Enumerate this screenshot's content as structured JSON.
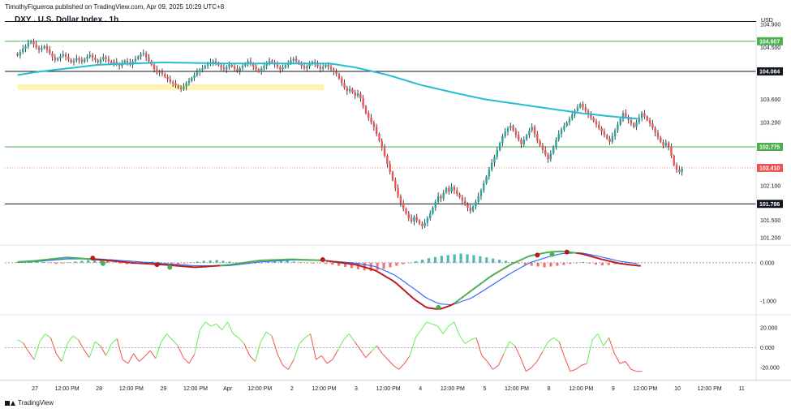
{
  "header": {
    "publisher_line": "TimothyFigueroa published on TradingView.com, Apr 09, 2025 10:29 UTC+8",
    "title": "DXY . U.S. Dollar Index . 1h",
    "currency": "USD"
  },
  "footer": {
    "brand": "TradingView"
  },
  "colors": {
    "up": "#26a69a",
    "down": "#ef5350",
    "wick": "#131722",
    "ma": "#26bdd1",
    "h_green": "#4caf50",
    "h_black": "#131722",
    "current": "#ef5350",
    "zone": "#fff2b3",
    "macd_green": "#4caf50",
    "macd_red": "#b71c1c",
    "signal_blue": "#2962ff",
    "osc_up": "#66ee55",
    "osc_down": "#ef5350"
  },
  "chart_data": [
    {
      "type": "candlestick",
      "title": "DXY . U.S. Dollar Index . 1h",
      "ylim": [
        101.1,
        104.9
      ],
      "y_ticks": [
        "104.900",
        "104.500",
        "104.084",
        "103.600",
        "103.200",
        "102.100",
        "101.500",
        "101.200"
      ],
      "x_ticks": [
        "27",
        "12:00 PM",
        "28",
        "12:00 PM",
        "29",
        "12:00 PM",
        "Apr",
        "12:00 PM",
        "2",
        "12:00 PM",
        "3",
        "12:00 PM",
        "4",
        "12:00 PM",
        "5",
        "12:00 PM",
        "8",
        "12:00 PM",
        "9",
        "12:00 PM",
        "10",
        "12:00 PM",
        "11"
      ],
      "x_tick_pos": [
        0,
        0.5,
        1,
        1.5,
        2,
        2.5,
        3,
        3.5,
        4,
        4.5,
        5,
        5.5,
        6,
        6.5,
        7,
        7.5,
        8,
        8.5,
        9,
        9.5,
        10,
        10.5,
        11
      ],
      "x_start": -0.27,
      "x_end": 11,
      "bar_period": 0.0417,
      "closes": [
        104.36,
        104.42,
        104.48,
        104.52,
        104.58,
        104.61,
        104.55,
        104.5,
        104.46,
        104.49,
        104.52,
        104.46,
        104.4,
        104.33,
        104.28,
        104.31,
        104.35,
        104.38,
        104.34,
        104.29,
        104.24,
        104.27,
        104.31,
        104.28,
        104.25,
        104.3,
        104.34,
        104.37,
        104.32,
        104.28,
        104.24,
        104.29,
        104.33,
        104.3,
        104.26,
        104.22,
        104.25,
        104.21,
        104.18,
        104.23,
        104.27,
        104.24,
        104.2,
        104.26,
        104.3,
        104.34,
        104.38,
        104.4,
        104.33,
        104.26,
        104.2,
        104.12,
        104.06,
        104.08,
        104.04,
        103.99,
        103.95,
        103.9,
        103.88,
        103.84,
        103.8,
        103.78,
        103.82,
        103.88,
        103.92,
        103.97,
        104.02,
        104.07,
        104.11,
        104.14,
        104.18,
        104.21,
        104.24,
        104.26,
        104.23,
        104.19,
        104.15,
        104.12,
        104.16,
        104.2,
        104.17,
        104.13,
        104.09,
        104.14,
        104.18,
        104.22,
        104.26,
        104.21,
        104.17,
        104.12,
        104.08,
        104.13,
        104.18,
        104.23,
        104.27,
        104.24,
        104.2,
        104.16,
        104.12,
        104.15,
        104.19,
        104.23,
        104.27,
        104.3,
        104.26,
        104.22,
        104.18,
        104.14,
        104.17,
        104.21,
        104.25,
        104.21,
        104.17,
        104.13,
        104.16,
        104.2,
        104.16,
        104.12,
        104.08,
        104.04,
        103.96,
        103.88,
        103.8,
        103.74,
        103.78,
        103.72,
        103.66,
        103.7,
        103.62,
        103.48,
        103.36,
        103.28,
        103.2,
        103.12,
        103.0,
        102.88,
        102.76,
        102.62,
        102.48,
        102.34,
        102.2,
        102.06,
        101.92,
        101.8,
        101.7,
        101.62,
        101.54,
        101.48,
        101.56,
        101.5,
        101.44,
        101.4,
        101.46,
        101.54,
        101.62,
        101.72,
        101.82,
        101.92,
        101.88,
        101.98,
        102.06,
        102.0,
        102.08,
        102.02,
        101.96,
        101.9,
        101.84,
        101.78,
        101.72,
        101.66,
        101.74,
        101.82,
        101.92,
        102.02,
        102.14,
        102.26,
        102.38,
        102.5,
        102.6,
        102.72,
        102.84,
        102.96,
        103.04,
        103.1,
        103.14,
        103.06,
        102.98,
        102.9,
        102.82,
        102.9,
        102.98,
        103.06,
        103.12,
        103.0,
        102.88,
        102.8,
        102.72,
        102.64,
        102.56,
        102.66,
        102.78,
        102.9,
        103.0,
        103.08,
        103.14,
        103.2,
        103.26,
        103.34,
        103.4,
        103.46,
        103.52,
        103.46,
        103.4,
        103.34,
        103.28,
        103.22,
        103.16,
        103.1,
        103.04,
        102.98,
        102.92,
        102.86,
        102.96,
        103.06,
        103.16,
        103.26,
        103.36,
        103.3,
        103.24,
        103.18,
        103.12,
        103.2,
        103.28,
        103.36,
        103.3,
        103.24,
        103.18,
        103.1,
        103.02,
        102.94,
        102.86,
        102.8,
        102.84,
        102.78,
        102.62,
        102.46,
        102.38,
        102.34,
        102.4
      ],
      "wick": 0.06,
      "ma200": {
        "name": "",
        "anchors": [
          [
            -0.27,
            104.02
          ],
          [
            0,
            104.07
          ],
          [
            1,
            104.2
          ],
          [
            2,
            104.24
          ],
          [
            3,
            104.22
          ],
          [
            4,
            104.22
          ],
          [
            4.6,
            104.22
          ],
          [
            5,
            104.15
          ],
          [
            5.5,
            104.02
          ],
          [
            6,
            103.85
          ],
          [
            6.5,
            103.72
          ],
          [
            7,
            103.6
          ],
          [
            7.5,
            103.52
          ],
          [
            8,
            103.44
          ],
          [
            8.5,
            103.36
          ],
          [
            9,
            103.3
          ],
          [
            9.4,
            103.26
          ]
        ]
      },
      "levels": [
        {
          "value": 104.95,
          "label": "",
          "style": "black",
          "x_label": false
        },
        {
          "value": 104.607,
          "label": "104.607",
          "style": "green"
        },
        {
          "value": 104.084,
          "label": "104.084",
          "style": "black"
        },
        {
          "value": 102.775,
          "label": "102.775",
          "style": "green"
        },
        {
          "value": 102.41,
          "label": "102.410",
          "style": "current"
        },
        {
          "value": 101.786,
          "label": "101.786",
          "style": "black"
        }
      ],
      "zone": {
        "from_x": -0.27,
        "to_x": 4.5,
        "low": 103.76,
        "high": 103.86
      }
    },
    {
      "type": "macd",
      "ylim": [
        -1.3,
        0.4
      ],
      "y_ticks": [
        "0.000",
        "-1.000"
      ],
      "y_tick_values": [
        0,
        -1
      ],
      "histogram": [
        0.02,
        0.03,
        0.05,
        0.04,
        0.02,
        -0.01,
        -0.03,
        -0.02,
        0.01,
        0.03,
        0.05,
        0.07,
        0.08,
        0.06,
        0.04,
        0.01,
        -0.02,
        -0.04,
        -0.03,
        -0.01,
        0.02,
        0.03,
        0.02,
        -0.01,
        -0.03,
        -0.04,
        -0.02,
        0.01,
        0.03,
        0.05,
        0.06,
        0.07,
        0.05,
        0.03,
        0.01,
        -0.02,
        -0.03,
        -0.02,
        0.0,
        0.02,
        0.04,
        0.06,
        0.05,
        0.03,
        0.01,
        -0.01,
        -0.02,
        -0.01,
        -0.03,
        -0.05,
        -0.08,
        -0.11,
        -0.14,
        -0.17,
        -0.2,
        -0.22,
        -0.19,
        -0.16,
        -0.12,
        -0.08,
        -0.04,
        0.0,
        0.04,
        0.08,
        0.12,
        0.15,
        0.18,
        0.2,
        0.22,
        0.24,
        0.22,
        0.2,
        0.17,
        0.14,
        0.11,
        0.08,
        0.05,
        0.02,
        -0.02,
        -0.05,
        -0.08,
        -0.1,
        -0.12,
        -0.1,
        -0.08,
        -0.06,
        -0.03,
        -0.01,
        0.02,
        -0.02,
        -0.05,
        -0.07,
        -0.06,
        -0.04,
        -0.03
      ],
      "macd": [
        [
          -0.27,
          0.02
        ],
        [
          0,
          0.05
        ],
        [
          0.5,
          0.14
        ],
        [
          1,
          0.08
        ],
        [
          1.5,
          0.0
        ],
        [
          2,
          -0.05
        ],
        [
          2.5,
          -0.12
        ],
        [
          3,
          -0.06
        ],
        [
          3.5,
          0.06
        ],
        [
          4,
          0.09
        ],
        [
          4.5,
          0.06
        ],
        [
          5,
          -0.05
        ],
        [
          5.3,
          -0.2
        ],
        [
          5.6,
          -0.5
        ],
        [
          5.9,
          -0.95
        ],
        [
          6.1,
          -1.18
        ],
        [
          6.3,
          -1.22
        ],
        [
          6.5,
          -1.1
        ],
        [
          6.8,
          -0.72
        ],
        [
          7.1,
          -0.35
        ],
        [
          7.4,
          -0.05
        ],
        [
          7.7,
          0.18
        ],
        [
          8,
          0.28
        ],
        [
          8.2,
          0.3
        ],
        [
          8.5,
          0.24
        ],
        [
          8.8,
          0.1
        ],
        [
          9.1,
          -0.02
        ],
        [
          9.4,
          -0.08
        ]
      ],
      "signal": [
        [
          -0.27,
          0.01
        ],
        [
          0,
          0.03
        ],
        [
          0.5,
          0.1
        ],
        [
          1,
          0.1
        ],
        [
          1.5,
          0.04
        ],
        [
          2,
          -0.02
        ],
        [
          2.5,
          -0.08
        ],
        [
          3,
          -0.08
        ],
        [
          3.5,
          0.02
        ],
        [
          4,
          0.07
        ],
        [
          4.5,
          0.06
        ],
        [
          5,
          -0.01
        ],
        [
          5.3,
          -0.1
        ],
        [
          5.6,
          -0.32
        ],
        [
          5.9,
          -0.68
        ],
        [
          6.1,
          -0.93
        ],
        [
          6.3,
          -1.08
        ],
        [
          6.5,
          -1.1
        ],
        [
          6.8,
          -0.92
        ],
        [
          7.1,
          -0.6
        ],
        [
          7.4,
          -0.28
        ],
        [
          7.7,
          0.0
        ],
        [
          8,
          0.16
        ],
        [
          8.2,
          0.24
        ],
        [
          8.5,
          0.26
        ],
        [
          8.8,
          0.16
        ],
        [
          9.1,
          0.04
        ],
        [
          9.4,
          -0.03
        ]
      ],
      "cross_up": [
        [
          1.06,
          -0.02
        ],
        [
          2.1,
          -0.12
        ],
        [
          6.28,
          -1.17
        ],
        [
          8.05,
          0.22
        ]
      ],
      "cross_down": [
        [
          0.9,
          0.12
        ],
        [
          1.9,
          -0.05
        ],
        [
          4.48,
          0.08
        ],
        [
          7.82,
          0.2
        ],
        [
          8.28,
          0.28
        ]
      ]
    },
    {
      "type": "oscillator",
      "ylim": [
        -30,
        30
      ],
      "y_ticks": [
        "20.000",
        "0.000",
        "-20.000"
      ],
      "y_tick_values": [
        20,
        0,
        -20
      ],
      "values": [
        8,
        5,
        -4,
        -12,
        6,
        14,
        10,
        -6,
        -14,
        4,
        12,
        8,
        -2,
        -10,
        6,
        2,
        -8,
        4,
        9,
        -12,
        -16,
        -6,
        -14,
        -9,
        -3,
        -11,
        6,
        14,
        8,
        2,
        -10,
        -16,
        -7,
        18,
        26,
        22,
        24,
        18,
        26,
        14,
        10,
        4,
        -8,
        -14,
        6,
        16,
        12,
        -6,
        -18,
        -22,
        -12,
        4,
        10,
        14,
        -12,
        -8,
        -16,
        -12,
        -2,
        8,
        14,
        6,
        -2,
        -10,
        -4,
        2,
        -6,
        -12,
        -18,
        -22,
        -16,
        -8,
        10,
        18,
        26,
        24,
        22,
        14,
        22,
        26,
        12,
        4,
        8,
        10,
        -8,
        -14,
        -22,
        -18,
        -6,
        6,
        2,
        -10,
        -24,
        -20,
        -14,
        -4,
        6,
        10,
        6,
        -10,
        -24,
        -22,
        -18,
        -16,
        8,
        14,
        2,
        10,
        -6,
        -16,
        -14,
        -22,
        -24,
        -24
      ],
      "x_start": -0.27,
      "x_end": 9.45
    }
  ]
}
